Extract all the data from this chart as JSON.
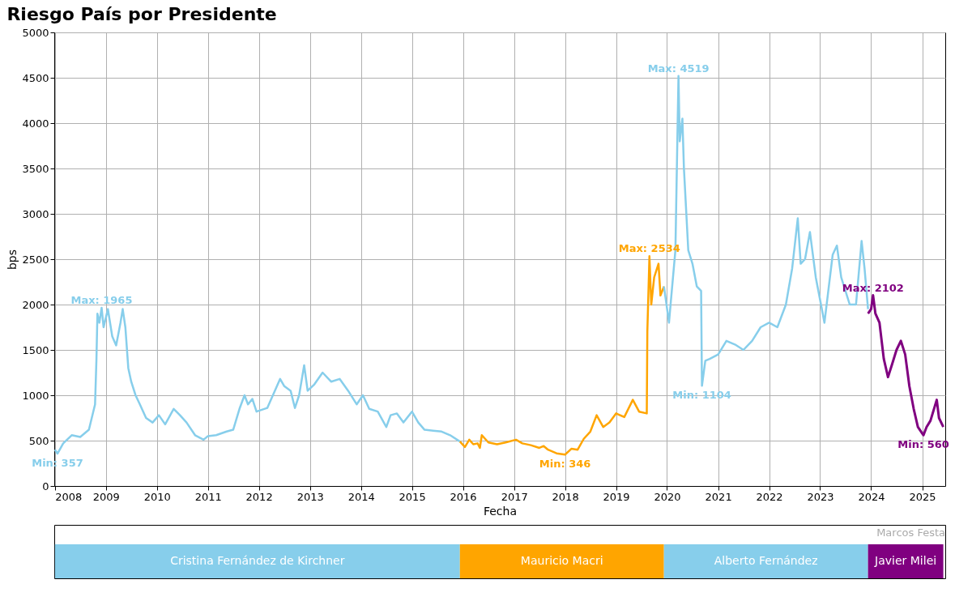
{
  "chart_data": {
    "type": "line",
    "title": "Riesgo País por Presidente",
    "xlabel": "Fecha",
    "ylabel": "bps",
    "xlim": [
      "2007-12-28",
      "2025-06-15"
    ],
    "xticks": [
      "2008",
      "2009",
      "2010",
      "2011",
      "2012",
      "2013",
      "2014",
      "2015",
      "2016",
      "2017",
      "2018",
      "2019",
      "2020",
      "2021",
      "2022",
      "2023",
      "2024",
      "2025"
    ],
    "ylim": [
      0,
      5000
    ],
    "yticks": [
      0,
      500,
      1000,
      1500,
      2000,
      2500,
      3000,
      3500,
      4000,
      4500,
      5000
    ],
    "grid": true,
    "legend": "bottom",
    "line_style": "solid",
    "series": [
      {
        "name": "Cristina Fernández de Kirchner",
        "color": "#87ceeb",
        "x": [
          "2008-01-02",
          "2008-01-20",
          "2008-03-01",
          "2008-05-01",
          "2008-07-01",
          "2008-09-01",
          "2008-10-15",
          "2008-10-25",
          "2008-11-01",
          "2008-11-15",
          "2008-12-01",
          "2008-12-15",
          "2009-01-15",
          "2009-02-15",
          "2009-03-15",
          "2009-04-15",
          "2009-05-01",
          "2009-05-20",
          "2009-06-10",
          "2009-07-01",
          "2009-08-01",
          "2009-09-01",
          "2009-10-15",
          "2009-12-01",
          "2010-01-15",
          "2010-03-01",
          "2010-05-01",
          "2010-06-15",
          "2010-08-01",
          "2010-10-01",
          "2010-12-01",
          "2011-01-01",
          "2011-03-01",
          "2011-05-15",
          "2011-07-01",
          "2011-08-15",
          "2011-09-20",
          "2011-10-15",
          "2011-11-15",
          "2011-12-15",
          "2012-03-01",
          "2012-06-01",
          "2012-07-01",
          "2012-08-15",
          "2012-09-15",
          "2012-10-15",
          "2012-11-20",
          "2012-12-15",
          "2013-02-01",
          "2013-04-01",
          "2013-06-01",
          "2013-08-01",
          "2013-10-01",
          "2013-12-01",
          "2014-01-15",
          "2014-03-01",
          "2014-05-01",
          "2014-07-01",
          "2014-08-01",
          "2014-09-15",
          "2014-11-01",
          "2015-01-01",
          "2015-02-15",
          "2015-04-01",
          "2015-06-01",
          "2015-08-01",
          "2015-10-01",
          "2015-12-10"
        ],
        "values": [
          400,
          357,
          470,
          560,
          540,
          620,
          900,
          1400,
          1900,
          1800,
          1965,
          1750,
          1950,
          1650,
          1550,
          1800,
          1950,
          1750,
          1300,
          1150,
          1000,
          900,
          750,
          700,
          780,
          680,
          850,
          780,
          700,
          560,
          510,
          550,
          560,
          600,
          620,
          850,
          1000,
          900,
          960,
          820,
          860,
          1180,
          1100,
          1050,
          860,
          1000,
          1330,
          1050,
          1120,
          1250,
          1150,
          1180,
          1050,
          900,
          1000,
          850,
          820,
          650,
          780,
          800,
          700,
          820,
          700,
          620,
          610,
          600,
          560,
          490
        ]
      },
      {
        "name": "Mauricio Macri",
        "color": "#ffa500",
        "x": [
          "2015-12-10",
          "2016-01-15",
          "2016-02-15",
          "2016-03-15",
          "2016-04-15",
          "2016-05-01",
          "2016-05-15",
          "2016-07-01",
          "2016-09-01",
          "2016-11-01",
          "2017-01-15",
          "2017-03-01",
          "2017-05-01",
          "2017-07-01",
          "2017-08-01",
          "2017-09-01",
          "2017-11-01",
          "2018-01-01",
          "2018-02-15",
          "2018-04-01",
          "2018-05-15",
          "2018-07-01",
          "2018-08-15",
          "2018-10-01",
          "2018-11-15",
          "2019-01-01",
          "2019-03-01",
          "2019-05-01",
          "2019-06-15",
          "2019-08-09",
          "2019-08-13",
          "2019-08-28",
          "2019-09-10",
          "2019-10-01",
          "2019-11-01",
          "2019-11-15",
          "2019-12-10"
        ],
        "values": [
          490,
          430,
          510,
          460,
          470,
          420,
          560,
          480,
          460,
          480,
          510,
          470,
          450,
          420,
          440,
          400,
          360,
          346,
          410,
          400,
          520,
          600,
          780,
          650,
          700,
          800,
          760,
          950,
          820,
          800,
          1700,
          2534,
          2000,
          2300,
          2450,
          2100,
          2200
        ]
      },
      {
        "name": "Alberto Fernández",
        "color": "#87ceeb",
        "x": [
          "2019-12-10",
          "2020-01-15",
          "2020-02-01",
          "2020-03-01",
          "2020-03-23",
          "2020-04-01",
          "2020-04-20",
          "2020-05-01",
          "2020-06-01",
          "2020-07-01",
          "2020-08-01",
          "2020-09-01",
          "2020-09-07",
          "2020-10-01",
          "2020-11-01",
          "2021-01-01",
          "2021-03-01",
          "2021-05-01",
          "2021-07-01",
          "2021-09-01",
          "2021-11-01",
          "2022-01-01",
          "2022-03-01",
          "2022-05-01",
          "2022-06-15",
          "2022-07-25",
          "2022-08-15",
          "2022-09-15",
          "2022-10-20",
          "2022-12-01",
          "2023-02-01",
          "2023-04-01",
          "2023-05-01",
          "2023-06-01",
          "2023-08-01",
          "2023-09-15",
          "2023-10-25",
          "2023-11-15",
          "2023-12-10"
        ],
        "values": [
          2200,
          1800,
          2100,
          2600,
          4519,
          3800,
          4050,
          3500,
          2600,
          2450,
          2200,
          2150,
          1104,
          1380,
          1400,
          1450,
          1600,
          1560,
          1500,
          1600,
          1750,
          1800,
          1750,
          2000,
          2400,
          2950,
          2450,
          2500,
          2800,
          2300,
          1800,
          2550,
          2650,
          2300,
          2000,
          2000,
          2700,
          2400,
          1950
        ]
      },
      {
        "name": "Javier Milei",
        "color": "#800080",
        "x": [
          "2023-12-10",
          "2024-01-01",
          "2024-01-15",
          "2024-02-01",
          "2024-03-01",
          "2024-04-01",
          "2024-05-01",
          "2024-06-01",
          "2024-07-01",
          "2024-08-01",
          "2024-09-01",
          "2024-10-01",
          "2024-11-01",
          "2024-12-01",
          "2025-01-10",
          "2025-02-01",
          "2025-03-01",
          "2025-04-15",
          "2025-05-01",
          "2025-06-01"
        ],
        "values": [
          1900,
          1950,
          2102,
          1900,
          1800,
          1400,
          1200,
          1350,
          1500,
          1600,
          1450,
          1100,
          850,
          650,
          560,
          650,
          720,
          950,
          750,
          650
        ]
      }
    ],
    "annotations": [
      {
        "text": "Max: 1965",
        "x": "2008-12-01",
        "y": 1965
      },
      {
        "text": "Min: 357",
        "x": "2008-01-20",
        "y": 357
      },
      {
        "text": "Max: 2534",
        "x": "2019-08-28",
        "y": 2534
      },
      {
        "text": "Min: 346",
        "x": "2018-01-01",
        "y": 346
      },
      {
        "text": "Max: 4519",
        "x": "2020-03-23",
        "y": 4519
      },
      {
        "text": "Min: 1104",
        "x": "2020-09-07",
        "y": 1104
      },
      {
        "text": "Max: 2102",
        "x": "2024-01-15",
        "y": 2102
      },
      {
        "text": "Min: 560",
        "x": "2025-01-10",
        "y": 560
      },
      "Marcos Festa"
    ]
  }
}
